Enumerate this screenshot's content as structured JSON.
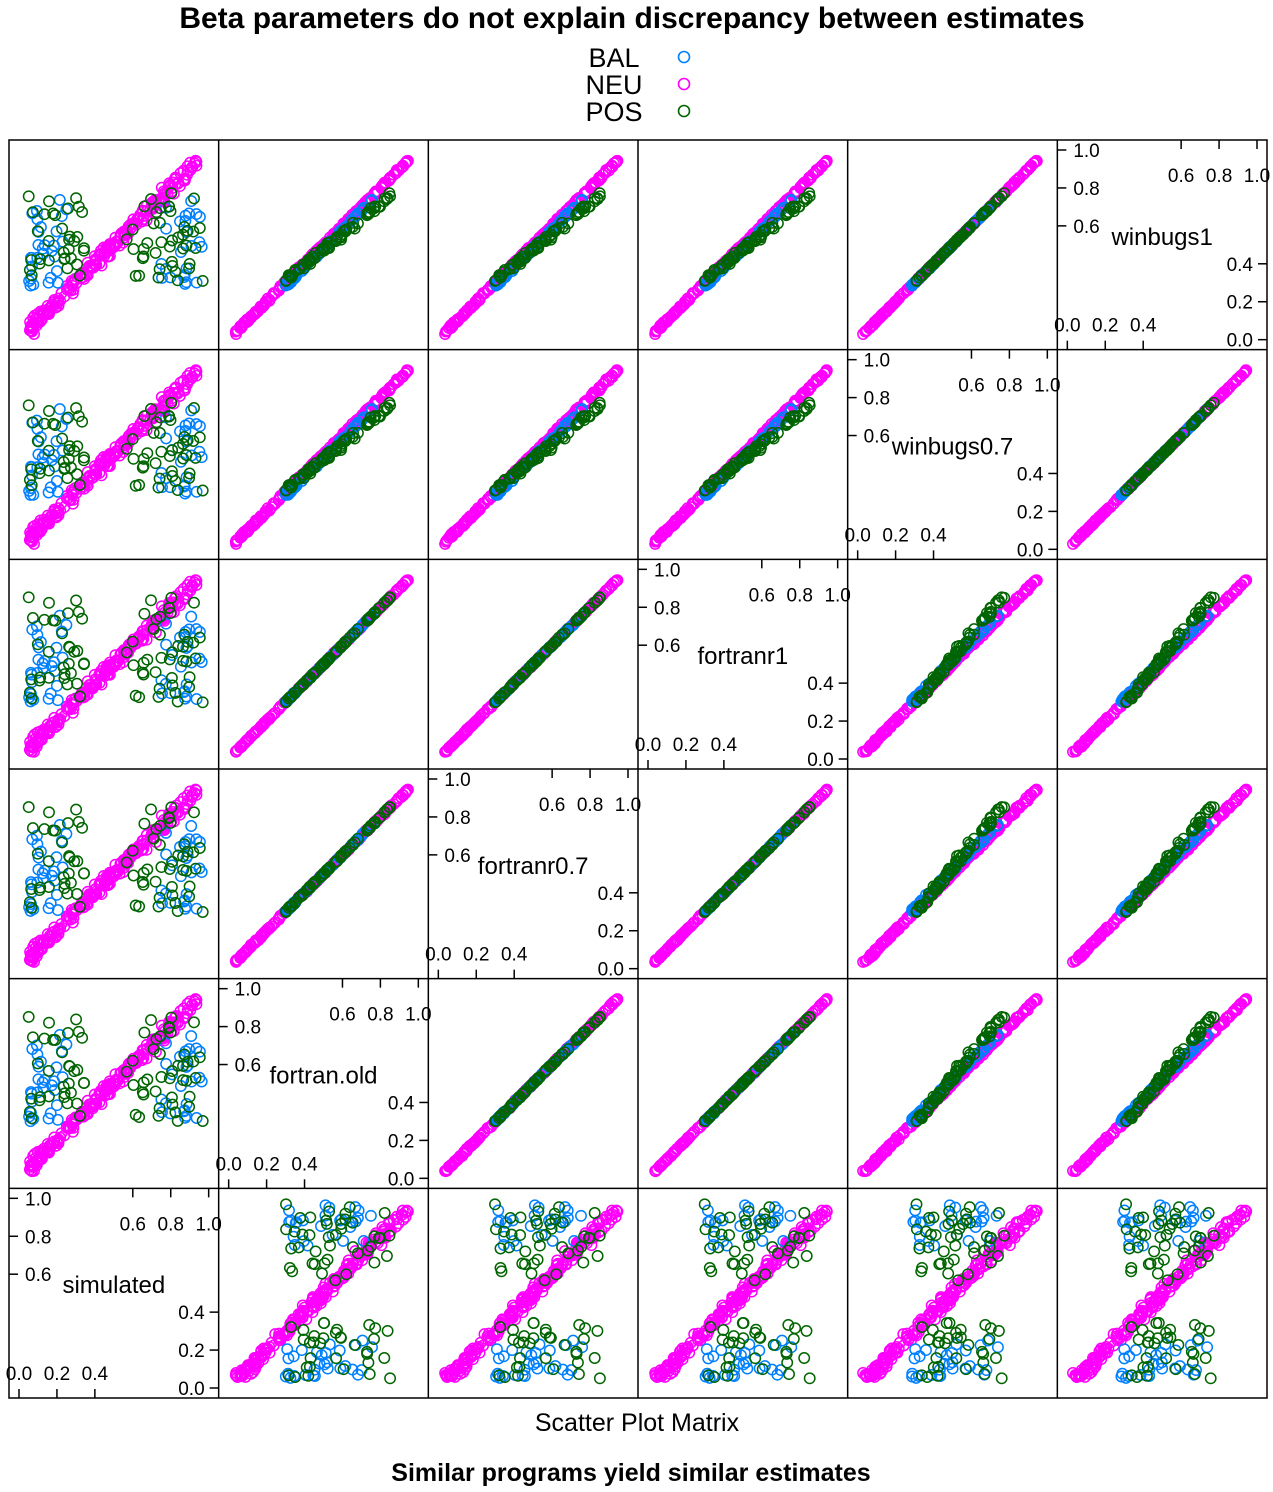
{
  "chart_data": {
    "type": "scatter",
    "title": "Beta parameters do not explain discrepancy between estimates",
    "xlabel": "Scatter Plot Matrix",
    "subtitle": "Similar programs yield similar estimates",
    "legend": {
      "placement": "top-center",
      "entries": [
        {
          "name": "BAL",
          "color": "#0080ff",
          "marker": "circle-open"
        },
        {
          "name": "NEU",
          "color": "#ff00ff",
          "marker": "circle-open"
        },
        {
          "name": "POS",
          "color": "#006400",
          "marker": "circle-open"
        }
      ]
    },
    "variables": [
      "simulated",
      "fortran.old",
      "fortranr0.7",
      "fortranr1",
      "winbugs0.7",
      "winbugs1"
    ],
    "axis_range": [
      0.0,
      1.0
    ],
    "diagonal_ticks": {
      "lower": [
        "0.0",
        "0.2",
        "0.4"
      ],
      "upper": [
        "0.6",
        "0.8",
        "1.0"
      ],
      "left": [
        "0.0",
        "0.2",
        "0.4"
      ],
      "right": [
        "0.6",
        "0.8",
        "1.0"
      ]
    },
    "series_summary": {
      "NEU": "Points lie on the identity line for all program pairs (about 0.05 to 0.95)",
      "BAL": "Near identity between programs; vs simulated flattened around 0.4-0.6",
      "POS": "Near identity for fortran family; winbugs vs fortran bent; vs simulated widely scattered"
    }
  }
}
